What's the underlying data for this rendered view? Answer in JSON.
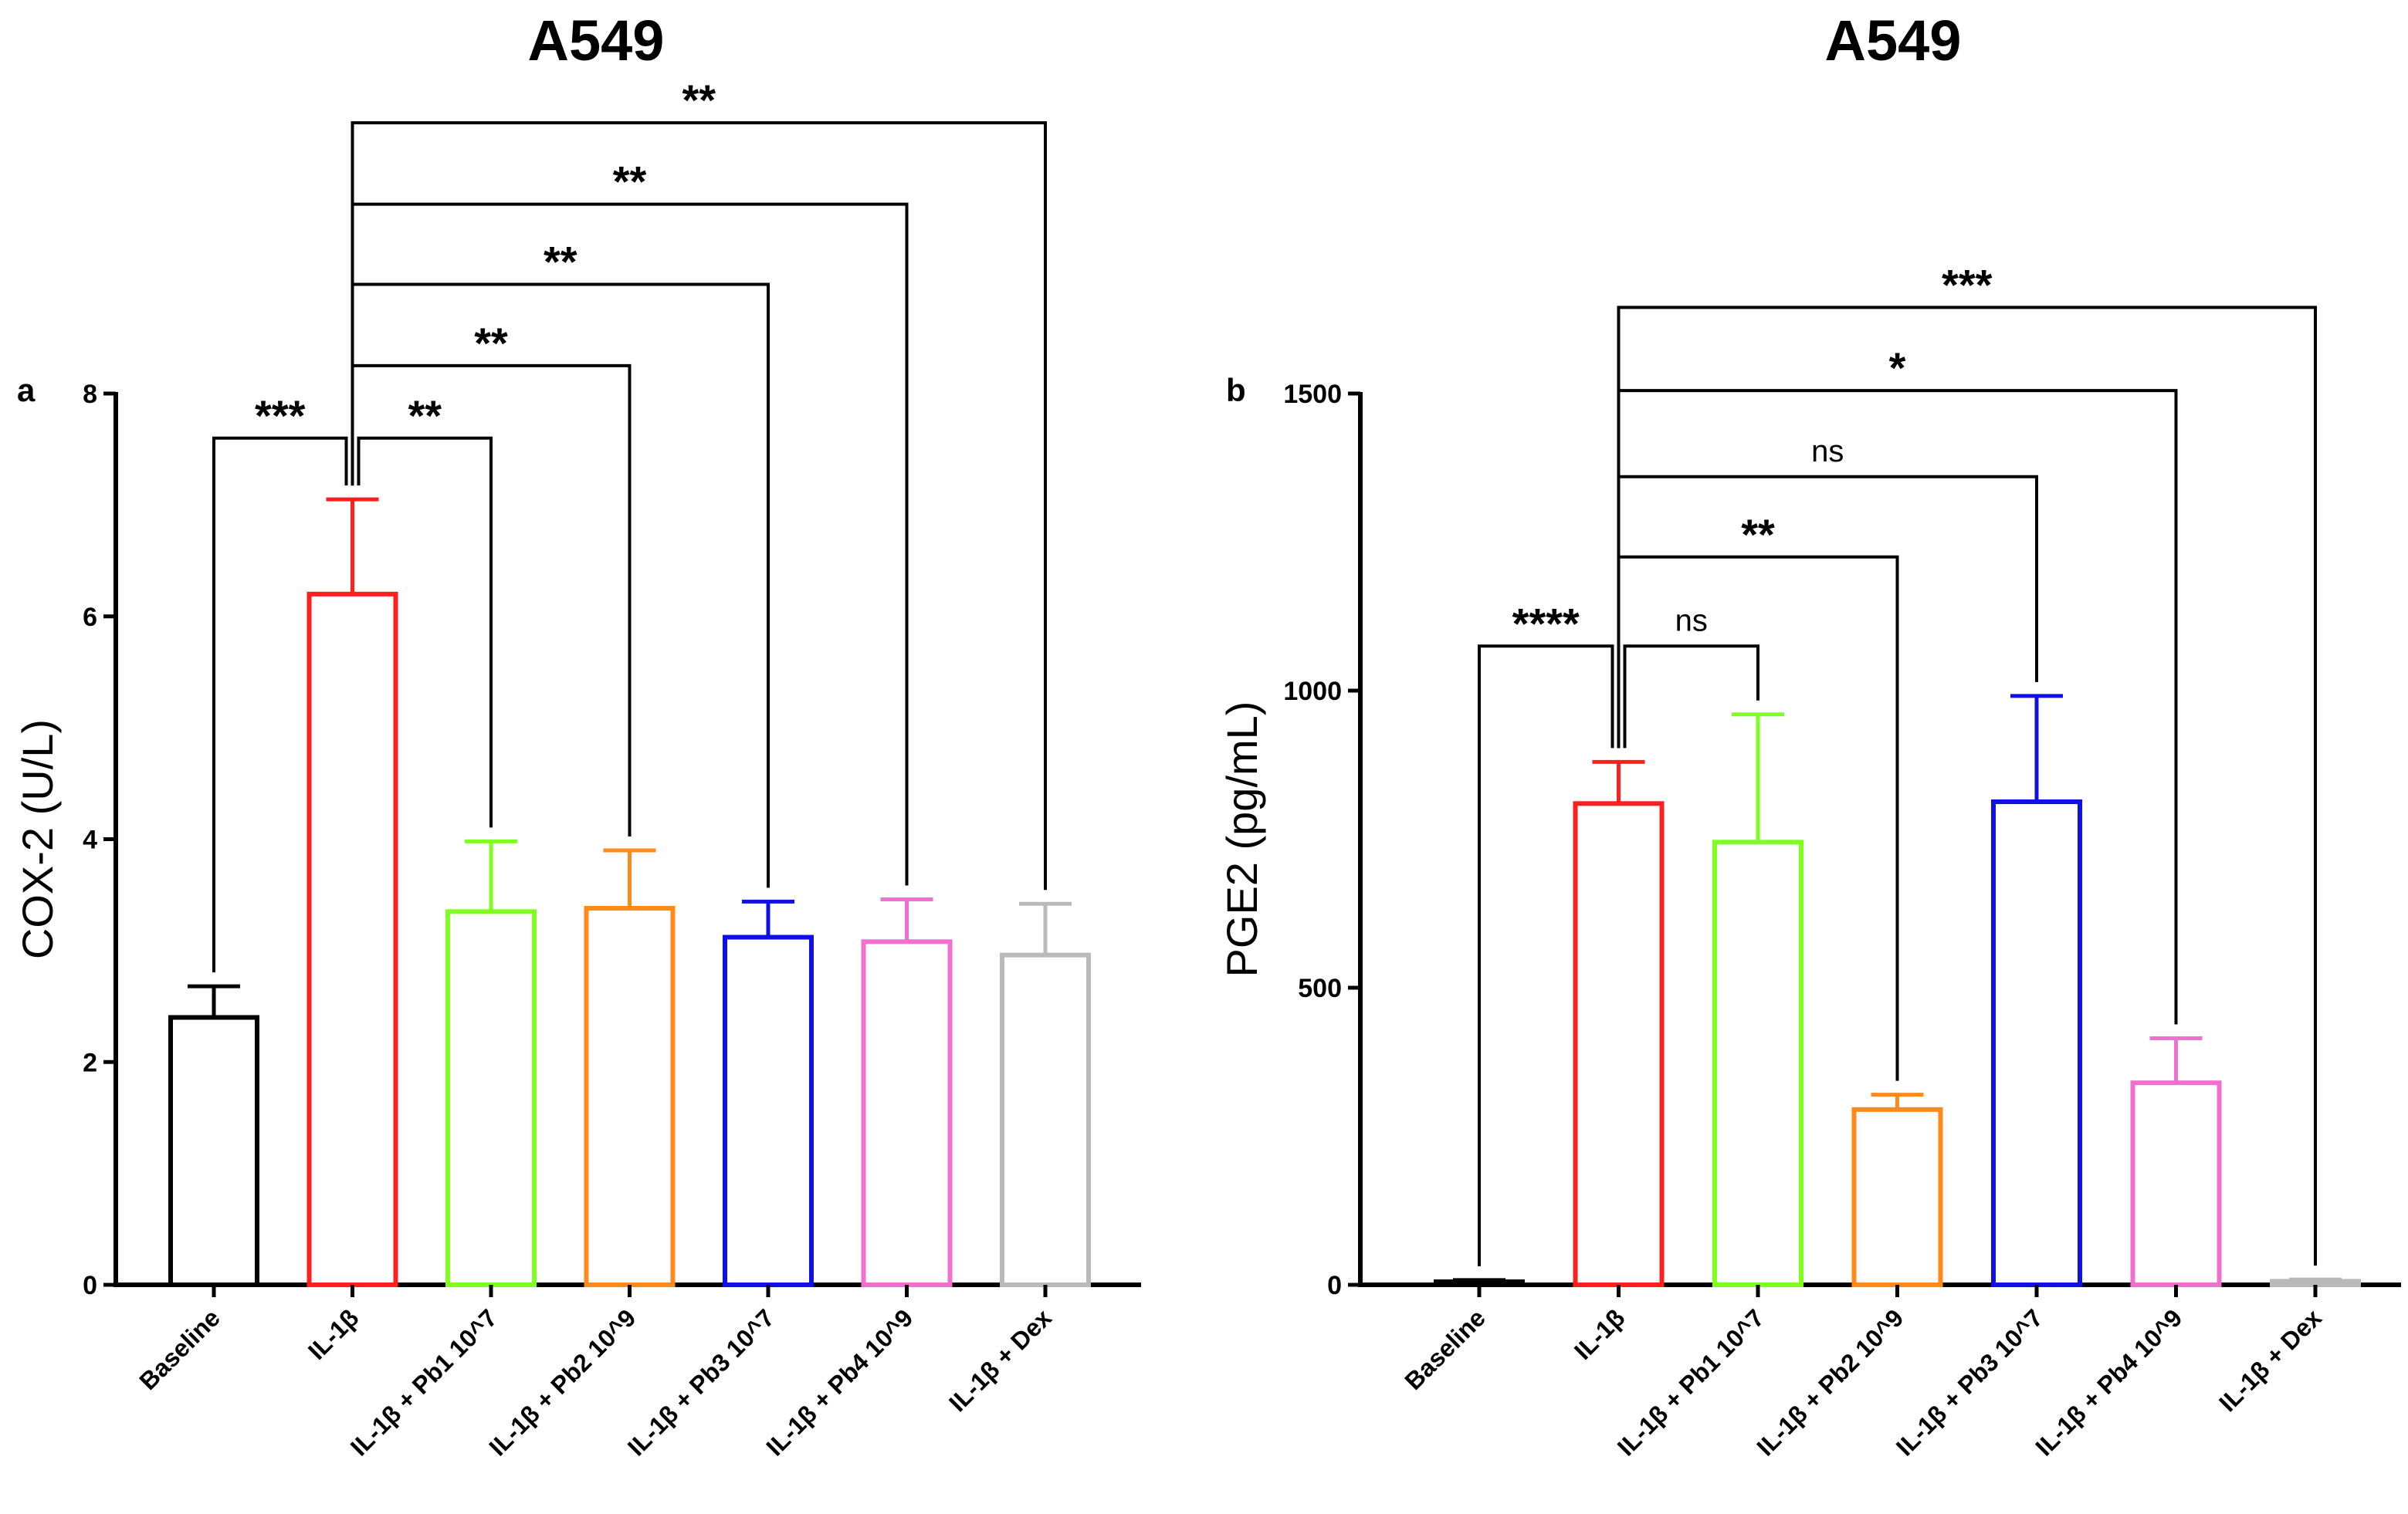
{
  "colors": {
    "axis": "#000000",
    "series": [
      "#000000",
      "#ff1f1f",
      "#7fff20",
      "#ff8a1c",
      "#1010e6",
      "#f26fd1",
      "#b9b9b9"
    ]
  },
  "chart_data": [
    {
      "panel": "a",
      "type": "bar",
      "title": "A549",
      "xlabel": "",
      "ylabel": "COX-2 (U/L)",
      "ylim": [
        0,
        8
      ],
      "yticks": [
        0,
        2,
        4,
        6,
        8
      ],
      "ytick_labels": [
        "0",
        "2",
        "4",
        "6",
        "8"
      ],
      "categories": [
        "Baseline",
        "IL-1β",
        "IL-1β + Pb1 10^7",
        "IL-1β + Pb2 10^9",
        "IL-1β + Pb3 10^7",
        "IL-1β + Pb4 10^9",
        "IL-1β + Dex"
      ],
      "values": [
        2.4,
        6.2,
        3.35,
        3.38,
        3.12,
        3.08,
        2.96
      ],
      "errors": [
        0.28,
        0.85,
        0.63,
        0.52,
        0.32,
        0.38,
        0.46
      ],
      "grid": false,
      "comparisons": [
        {
          "from": 0,
          "to": 1,
          "y": 7.6,
          "label": "***"
        },
        {
          "from": 1,
          "to": 2,
          "y": 7.6,
          "label": "**"
        },
        {
          "from": 1,
          "to": 3,
          "y": 8.25,
          "label": "**"
        },
        {
          "from": 1,
          "to": 4,
          "y": 8.98,
          "label": "**"
        },
        {
          "from": 1,
          "to": 5,
          "y": 9.7,
          "label": "**"
        },
        {
          "from": 1,
          "to": 6,
          "y": 10.43,
          "label": "**"
        }
      ]
    },
    {
      "panel": "b",
      "type": "bar",
      "title": "A549",
      "xlabel": "",
      "ylabel": "PGE2 (pg/mL)",
      "ylim": [
        0,
        1500
      ],
      "yticks": [
        0,
        500,
        1000,
        1500
      ],
      "ytick_labels": [
        "0",
        "500",
        "1000",
        "1500"
      ],
      "categories": [
        "Baseline",
        "IL-1β",
        "IL-1β + Pb1 10^7",
        "IL-1β + Pb2 10^9",
        "IL-1β + Pb3 10^7",
        "IL-1β + Pb4 10^9",
        "IL-1β + Dex"
      ],
      "values": [
        5,
        810,
        745,
        295,
        813,
        340,
        6
      ],
      "errors": [
        3,
        70,
        215,
        25,
        178,
        75,
        3
      ],
      "grid": false,
      "comparisons": [
        {
          "from": 0,
          "to": 1,
          "y": 1075,
          "label": "****"
        },
        {
          "from": 1,
          "to": 2,
          "y": 1075,
          "label": "ns"
        },
        {
          "from": 1,
          "to": 3,
          "y": 1225,
          "label": "**"
        },
        {
          "from": 1,
          "to": 4,
          "y": 1360,
          "label": "ns"
        },
        {
          "from": 1,
          "to": 5,
          "y": 1505,
          "label": "*"
        },
        {
          "from": 1,
          "to": 6,
          "y": 1645,
          "label": "***"
        }
      ]
    }
  ]
}
